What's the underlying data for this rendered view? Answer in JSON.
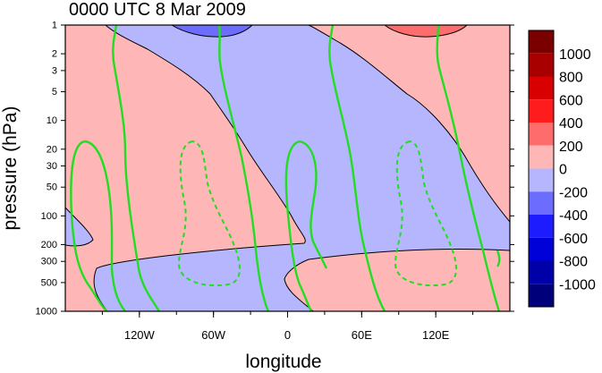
{
  "chart_data": {
    "type": "contour",
    "title": "0000 UTC 8 Mar 2009",
    "xlabel": "longitude",
    "ylabel": "pressure (hPa)",
    "x_axis": {
      "range": [
        -180,
        180
      ],
      "tick_labels": [
        "120W",
        "60W",
        "0",
        "60E",
        "120E"
      ],
      "tick_values": [
        -120,
        -60,
        0,
        60,
        120
      ]
    },
    "y_axis": {
      "scale": "log",
      "reversed": true,
      "range": [
        1000,
        1
      ],
      "tick_labels": [
        "1",
        "2",
        "3",
        "5",
        "10",
        "20",
        "30",
        "50",
        "100",
        "200",
        "300",
        "500",
        "1000"
      ],
      "tick_values": [
        1,
        2,
        3,
        5,
        10,
        20,
        30,
        50,
        100,
        200,
        300,
        500,
        1000
      ]
    },
    "colorbar": {
      "levels": [
        "1000",
        "800",
        "600",
        "400",
        "200",
        "0",
        "-200",
        "-400",
        "-600",
        "-800",
        "-1000"
      ],
      "level_values": [
        1000,
        800,
        600,
        400,
        200,
        0,
        -200,
        -400,
        -600,
        -800,
        -1000
      ],
      "colors": [
        "#7a0000",
        "#a80000",
        "#d80000",
        "#ff1c1c",
        "#ff6c6c",
        "#ffb6b6",
        "#b6b6ff",
        "#6c6cff",
        "#1c1cff",
        "#0000d8",
        "#0000a8",
        "#00007a"
      ]
    },
    "fill_colors": {
      "positive": "#ffb6b6",
      "negative": "#b6b6ff",
      "strong_negative": "#6c6cff",
      "strong_positive": "#ff6c6c"
    },
    "overlay_colors": {
      "contour_line": "#000000",
      "green_contour": "#22dd22"
    },
    "overlay_contours": "green contours, solid = positive, dashed = negative",
    "grid": false
  }
}
